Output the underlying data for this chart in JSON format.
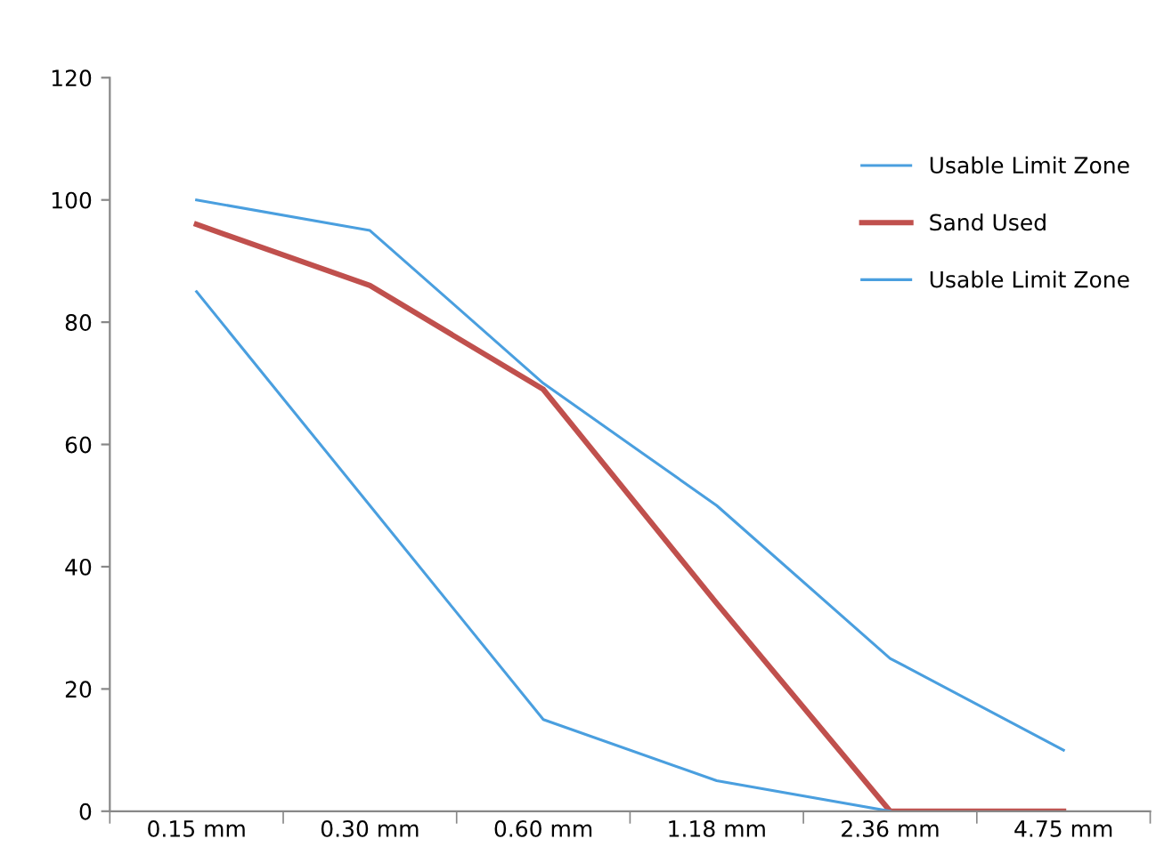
{
  "chart_data": {
    "type": "line",
    "categories": [
      "0.15 mm",
      "0.30 mm",
      "0.60 mm",
      "1.18 mm",
      "2.36 mm",
      "4.75 mm"
    ],
    "series": [
      {
        "name": "Usable Limit Zone",
        "color": "#4a9fdf",
        "values": [
          100,
          95,
          70,
          50,
          25,
          10
        ]
      },
      {
        "name": "Sand Used",
        "color": "#c0504d",
        "values": [
          96,
          86,
          69,
          34,
          0,
          0
        ]
      },
      {
        "name": "Usable Limit Zone",
        "color": "#4a9fdf",
        "values": [
          85,
          50,
          15,
          5,
          0,
          null
        ]
      }
    ],
    "ylim": [
      0,
      120
    ],
    "yticks": [
      0,
      20,
      40,
      60,
      80,
      100,
      120
    ],
    "grid": false,
    "legend": "top right",
    "marker": "none",
    "line_style": "solid"
  }
}
